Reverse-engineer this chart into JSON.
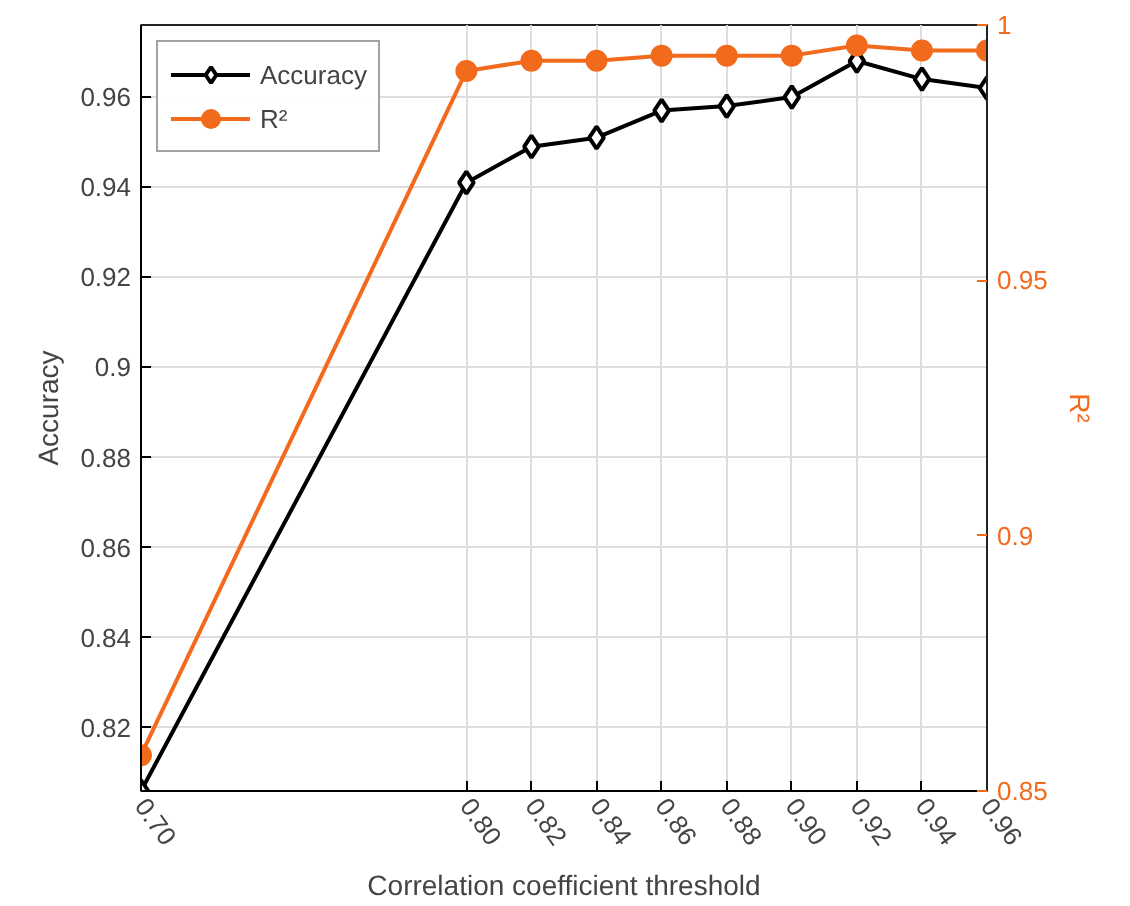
{
  "chart_data": {
    "type": "line",
    "xlabel": "Correlation coefficient threshold",
    "ylabel": "Accuracy",
    "y2label": "R²",
    "x": [
      0.7,
      0.8,
      0.82,
      0.84,
      0.86,
      0.88,
      0.9,
      0.92,
      0.94,
      0.96
    ],
    "series": [
      {
        "name": "Accuracy",
        "color": "#000000",
        "marker": "diamond",
        "values": [
          0.806,
          0.941,
          0.949,
          0.951,
          0.957,
          0.958,
          0.96,
          0.968,
          0.964,
          0.962
        ]
      },
      {
        "name": "R²",
        "color": "#f26b1d",
        "marker": "circle",
        "axis": "y2",
        "values": [
          0.857,
          0.991,
          0.993,
          0.993,
          0.994,
          0.994,
          0.994,
          0.996,
          0.995,
          0.995
        ]
      }
    ],
    "xlim": [
      0.7,
      0.96
    ],
    "xticks": [
      {
        "value": 0.7,
        "label": "0.70"
      },
      {
        "value": 0.8,
        "label": "0.80"
      },
      {
        "value": 0.82,
        "label": "0.82"
      },
      {
        "value": 0.84,
        "label": "0.84"
      },
      {
        "value": 0.86,
        "label": "0.86"
      },
      {
        "value": 0.88,
        "label": "0.88"
      },
      {
        "value": 0.9,
        "label": "0.90"
      },
      {
        "value": 0.92,
        "label": "0.92"
      },
      {
        "value": 0.94,
        "label": "0.94"
      },
      {
        "value": 0.96,
        "label": "0.96"
      }
    ],
    "ylim": [
      0.806,
      0.976
    ],
    "yticks": [
      0.82,
      0.84,
      0.86,
      0.88,
      0.9,
      0.92,
      0.94,
      0.96
    ],
    "y2lim": [
      0.85,
      1.0
    ],
    "y2ticks": [
      0.85,
      0.9,
      0.95,
      1
    ],
    "grid": true,
    "legend": "top left",
    "line_style": "solid"
  }
}
